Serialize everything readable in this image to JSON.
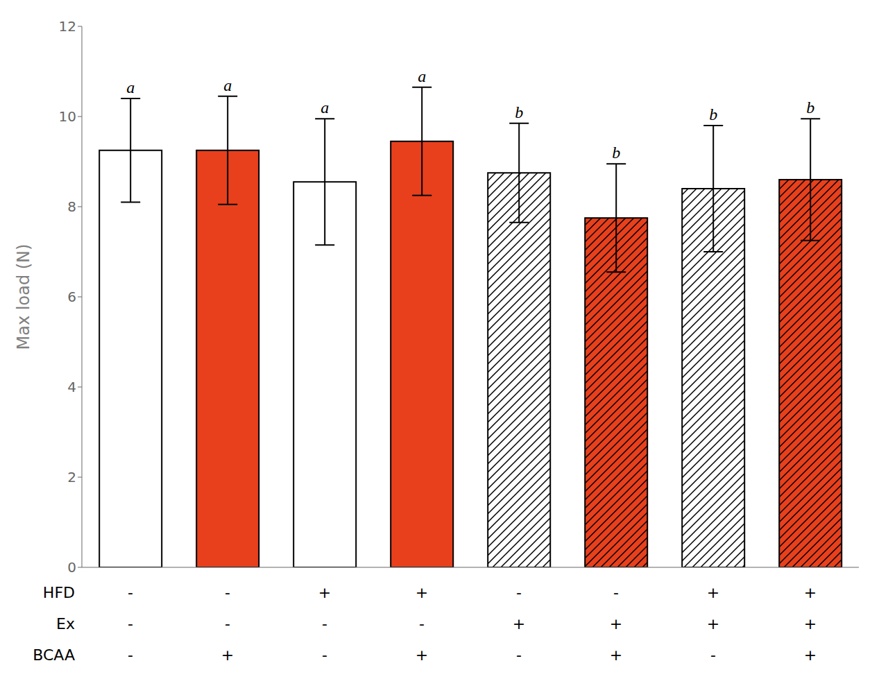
{
  "chart_data": {
    "type": "bar",
    "ylabel": "Max load (N)",
    "categories": [
      null,
      null,
      null,
      null,
      null,
      null,
      null,
      null
    ],
    "values": [
      9.25,
      9.25,
      8.55,
      9.45,
      8.75,
      7.75,
      8.4,
      8.6
    ],
    "errors": [
      1.15,
      1.2,
      1.4,
      1.2,
      1.1,
      1.2,
      1.4,
      1.35
    ],
    "letters": [
      "a",
      "a",
      "a",
      "a",
      "b",
      "b",
      "b",
      "b"
    ],
    "conditions": [
      {
        "label": "HFD",
        "values": [
          "-",
          "-",
          "+",
          "+",
          "-",
          "-",
          "+",
          "+"
        ]
      },
      {
        "label": "Ex",
        "values": [
          "-",
          "-",
          "-",
          "-",
          "+",
          "+",
          "+",
          "+"
        ]
      },
      {
        "label": "BCAA",
        "values": [
          "-",
          "+",
          "-",
          "+",
          "-",
          "+",
          "-",
          "+"
        ]
      }
    ],
    "colors": [
      "white",
      "#E8401C",
      "white",
      "#E8401C",
      "white",
      "#E8401C",
      "white",
      "#E8401C"
    ],
    "ylim": [
      0,
      12
    ],
    "yticks": [
      0,
      2,
      4,
      6,
      8,
      10,
      12
    ],
    "grid": false
  }
}
